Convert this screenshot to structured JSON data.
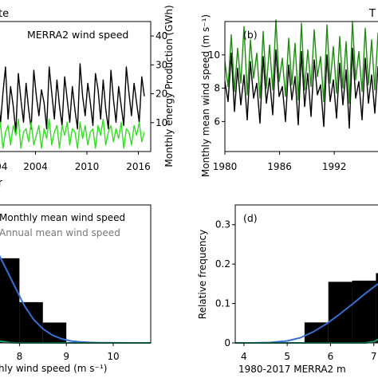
{
  "colors": {
    "black": "#000000",
    "green_light": "#33dd22",
    "green_dark": "#1e8b10",
    "blue_curve": "#3a6fd0",
    "teal_curve": "#1aa37a",
    "legend_gray": "#777777"
  },
  "panel_a": {
    "title_fragment": "te",
    "inner_title": "MERRA2 wind speed",
    "xlabel_fragment": "r",
    "ylabel_right": "Monthly energy Production (GWh)"
  },
  "panel_b": {
    "title_fragment": "T",
    "tag": "(b)",
    "ylabel": "Monthly mean wind speed (m s⁻¹)"
  },
  "panel_c": {
    "legend_monthly": "Monthly mean wind speed",
    "legend_annual": "Annual mean wind speed",
    "xlabel_fragment": "hly wind speed (m s⁻¹)"
  },
  "panel_d": {
    "tag": "(d)",
    "ylabel": "Relative frequency",
    "xlabel_fragment": "1980-2017 MERRA2 m"
  },
  "chart_data": [
    {
      "type": "line",
      "panel": "a",
      "title": "MERRA2 wind speed",
      "ylabel_right": "Monthly energy Production (GWh)",
      "x_ticks": [
        "004",
        "2004",
        "2010",
        "2016"
      ],
      "y_right_ticks": [
        10,
        20,
        30,
        40
      ],
      "x": [
        1999.3,
        1999.6,
        1999.9,
        2000.2,
        2000.5,
        2000.8,
        2001.1,
        2001.4,
        2001.7,
        2002.0,
        2002.3,
        2002.6,
        2002.9,
        2003.2,
        2003.5,
        2003.8,
        2004.1,
        2004.4,
        2004.7,
        2005.0,
        2005.3,
        2005.6,
        2005.9,
        2006.2,
        2006.5,
        2006.8,
        2007.1,
        2007.4,
        2007.7,
        2008.0,
        2008.3,
        2008.6,
        2008.9,
        2009.2,
        2009.5,
        2009.8,
        2010.1,
        2010.4,
        2010.7,
        2011.0,
        2011.3,
        2011.6,
        2011.9,
        2012.2,
        2012.5,
        2012.8,
        2013.1,
        2013.4,
        2013.7,
        2014.0,
        2014.3,
        2014.6,
        2014.9,
        2015.2,
        2015.5,
        2015.8,
        2016.1,
        2016.4,
        2016.7
      ],
      "series": [
        {
          "color": "#000000",
          "values": [
            19,
            27,
            12,
            22,
            30,
            14,
            24,
            18,
            10,
            28,
            20,
            13,
            25,
            17,
            11,
            29,
            21,
            15,
            23,
            19,
            11,
            30,
            22,
            14,
            26,
            18,
            12,
            27,
            20,
            13,
            24,
            17,
            11,
            31,
            21,
            15,
            25,
            19,
            12,
            28,
            23,
            14,
            26,
            17,
            11,
            29,
            20,
            13,
            24,
            18,
            12,
            30,
            22,
            15,
            25,
            19,
            13,
            27,
            21
          ]
        },
        {
          "color": "#33dd22",
          "values": [
            11,
            7,
            13,
            5,
            10,
            12,
            6,
            12,
            9,
            14,
            5,
            10,
            11,
            7,
            13,
            6,
            9,
            12,
            5,
            11,
            8,
            14,
            6,
            10,
            12,
            5,
            12,
            9,
            13,
            6,
            11,
            10,
            5,
            13,
            8,
            12,
            6,
            10,
            11,
            5,
            12,
            9,
            14,
            6,
            10,
            12,
            7,
            11,
            8,
            13,
            5,
            11,
            10,
            6,
            12,
            9,
            13,
            7,
            10
          ]
        }
      ]
    },
    {
      "type": "line",
      "panel": "b",
      "ylabel": "Monthly mean wind speed (m s⁻¹)",
      "x_ticks": [
        1980,
        1986,
        1992
      ],
      "y_ticks": [
        6,
        8,
        10
      ],
      "xlim": [
        1980,
        1997.5
      ],
      "ylim": [
        4.2,
        12.0
      ],
      "x": [
        1980.0,
        1980.35,
        1980.7,
        1981.05,
        1981.4,
        1981.75,
        1982.1,
        1982.45,
        1982.8,
        1983.15,
        1983.5,
        1983.85,
        1984.2,
        1984.55,
        1984.9,
        1985.25,
        1985.6,
        1985.95,
        1986.3,
        1986.65,
        1987.0,
        1987.35,
        1987.7,
        1988.05,
        1988.4,
        1988.75,
        1989.1,
        1989.45,
        1989.8,
        1990.15,
        1990.5,
        1990.85,
        1991.2,
        1991.55,
        1991.9,
        1992.25,
        1992.6,
        1992.95,
        1993.3,
        1993.65,
        1994.0,
        1994.35,
        1994.7,
        1995.05,
        1995.4,
        1995.75,
        1996.1,
        1996.45,
        1996.8,
        1997.15
      ],
      "series": [
        {
          "color": "#000000",
          "values": [
            8.4,
            7.2,
            10.1,
            6.6,
            9.2,
            7.0,
            8.8,
            6.1,
            9.6,
            7.4,
            8.3,
            5.9,
            9.9,
            7.1,
            8.6,
            6.4,
            10.3,
            7.5,
            8.1,
            6.0,
            9.4,
            7.3,
            8.7,
            5.8,
            10.2,
            6.9,
            8.9,
            6.3,
            9.7,
            7.6,
            8.2,
            5.7,
            10.0,
            7.2,
            8.5,
            6.2,
            9.5,
            7.0,
            9.1,
            5.6,
            10.4,
            7.4,
            8.4,
            6.1,
            9.8,
            7.1,
            8.8,
            6.5,
            9.3,
            7.3
          ]
        },
        {
          "color": "#1e8b10",
          "values": [
            9.6,
            8.1,
            11.2,
            7.8,
            10.4,
            8.3,
            11.7,
            7.6,
            10.9,
            8.6,
            10.1,
            7.4,
            11.4,
            8.0,
            10.6,
            7.9,
            12.1,
            8.4,
            9.8,
            7.5,
            11.0,
            8.2,
            10.7,
            7.3,
            11.9,
            7.9,
            10.3,
            8.1,
            11.5,
            8.7,
            9.9,
            7.2,
            11.8,
            8.3,
            10.5,
            7.7,
            11.1,
            8.0,
            10.8,
            7.1,
            12.0,
            8.5,
            10.2,
            7.8,
            11.6,
            8.2,
            10.9,
            7.9,
            11.3,
            8.4
          ]
        }
      ]
    },
    {
      "type": "bar",
      "panel": "c",
      "legend": [
        "Monthly mean wind speed",
        "Annual mean wind speed"
      ],
      "x_ticks": [
        8,
        9,
        10
      ],
      "xlim": [
        7.5,
        10.8
      ],
      "bins": [
        [
          7.5,
          8.0
        ],
        [
          8.0,
          8.5
        ],
        [
          8.5,
          9.0
        ]
      ],
      "values": [
        0.27,
        0.13,
        0.065
      ],
      "ylim": [
        0,
        0.44
      ],
      "series": [
        {
          "color": "#3a6fd0",
          "x": [
            7.5,
            7.7,
            7.9,
            8.1,
            8.3,
            8.5,
            8.7,
            8.9,
            9.1,
            9.3,
            9.5,
            9.7,
            10.0,
            10.5,
            10.8
          ],
          "values": [
            0.3,
            0.24,
            0.18,
            0.12,
            0.075,
            0.045,
            0.025,
            0.013,
            0.006,
            0.003,
            0.0015,
            0.0008,
            0.0003,
            0.0001,
            0.0
          ]
        },
        {
          "color": "#1aa37a",
          "x": [
            7.5,
            7.6,
            7.8,
            8.0,
            10.8
          ],
          "values": [
            0.01,
            0.005,
            0.001,
            0.0,
            0.0
          ]
        }
      ]
    },
    {
      "type": "bar",
      "panel": "d",
      "ylabel": "Relative frequency",
      "x_ticks": [
        4,
        5,
        6,
        7
      ],
      "y_ticks": [
        0.0,
        0.1,
        0.2,
        0.3
      ],
      "xlim": [
        3.8,
        7.3
      ],
      "ylim": [
        0.0,
        0.35
      ],
      "bins": [
        [
          5.4,
          5.95
        ],
        [
          5.95,
          6.5
        ],
        [
          6.5,
          7.05
        ],
        [
          7.05,
          7.3
        ]
      ],
      "values": [
        0.052,
        0.155,
        0.158,
        0.177
      ],
      "series": [
        {
          "color": "#3a6fd0",
          "x": [
            3.8,
            4.2,
            4.6,
            5.0,
            5.3,
            5.6,
            5.9,
            6.2,
            6.5,
            6.8,
            7.1,
            7.3
          ],
          "values": [
            0.0,
            0.0,
            0.001,
            0.005,
            0.013,
            0.028,
            0.048,
            0.072,
            0.098,
            0.125,
            0.15,
            0.165
          ]
        },
        {
          "color": "#1aa37a",
          "x": [
            3.8,
            6.8,
            7.0,
            7.15,
            7.3
          ],
          "values": [
            0.0,
            0.0,
            0.003,
            0.012,
            0.035
          ]
        }
      ]
    }
  ]
}
